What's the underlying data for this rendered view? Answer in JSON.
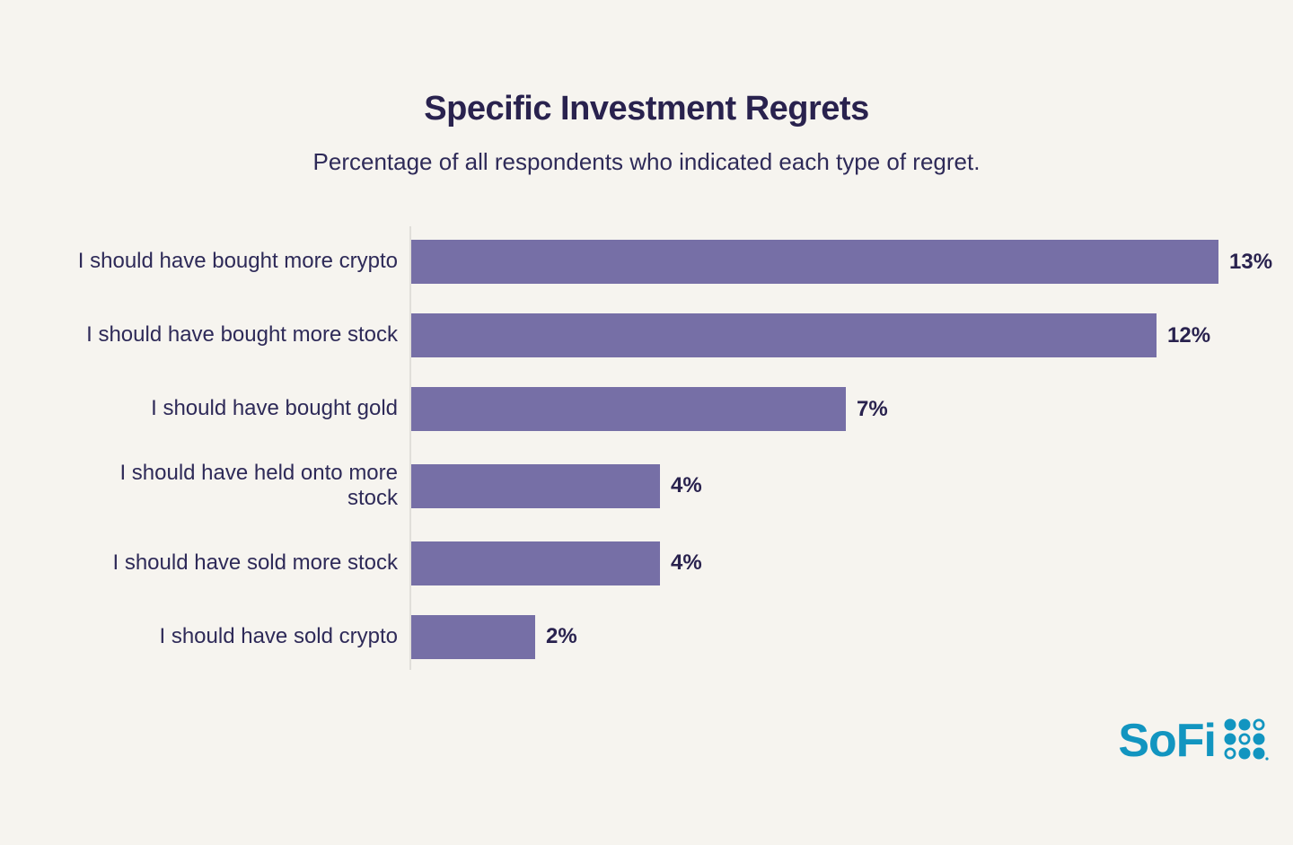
{
  "page": {
    "background_color": "#f6f4ef"
  },
  "header": {
    "title": "Specific Investment Regrets",
    "subtitle": "Percentage of all respondents who indicated each type of regret."
  },
  "chart_data": {
    "type": "bar",
    "orientation": "horizontal",
    "title": "Specific Investment Regrets",
    "subtitle": "Percentage of all respondents who indicated each type of regret.",
    "categories": [
      "I should have bought more crypto",
      "I should have bought more stock",
      "I should have bought gold",
      "I should have held onto more\nstock",
      "I should have sold more stock",
      "I should have sold crypto"
    ],
    "values": [
      13,
      12,
      7,
      4,
      4,
      2
    ],
    "value_labels": [
      "13%",
      "12%",
      "7%",
      "4%",
      "4%",
      "2%"
    ],
    "xlabel": "",
    "ylabel": "",
    "xlim": [
      0,
      13
    ],
    "grid": false,
    "legend": false,
    "bar_color": "#766fa6",
    "text_color": "#29224e",
    "axis_line_color": "#e0ded9"
  },
  "branding": {
    "logo_text": "SoFi",
    "logo_color": "#1295c0",
    "dots_icon": "sofi-dots-grid-icon"
  }
}
